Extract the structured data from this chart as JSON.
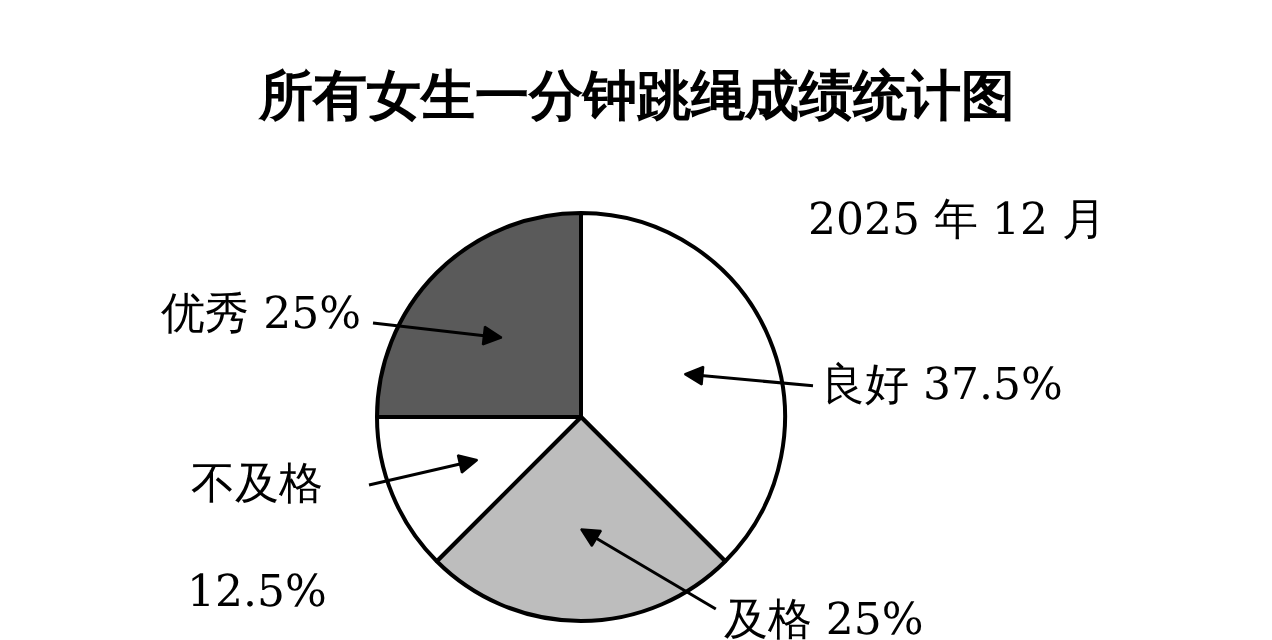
{
  "chart_data": {
    "type": "pie",
    "title": "所有女生一分钟跳绳成绩统计图",
    "subtitle": "2025 年 12 月",
    "categories": [
      "良好",
      "及格",
      "不及格",
      "优秀"
    ],
    "values": [
      37.5,
      25,
      12.5,
      25
    ],
    "value_labels": [
      "37.5%",
      "25%",
      "12.5%",
      "25%"
    ],
    "colors": [
      "#ffffff",
      "#bdbdbd",
      "#ffffff",
      "#5a5a5a"
    ]
  }
}
